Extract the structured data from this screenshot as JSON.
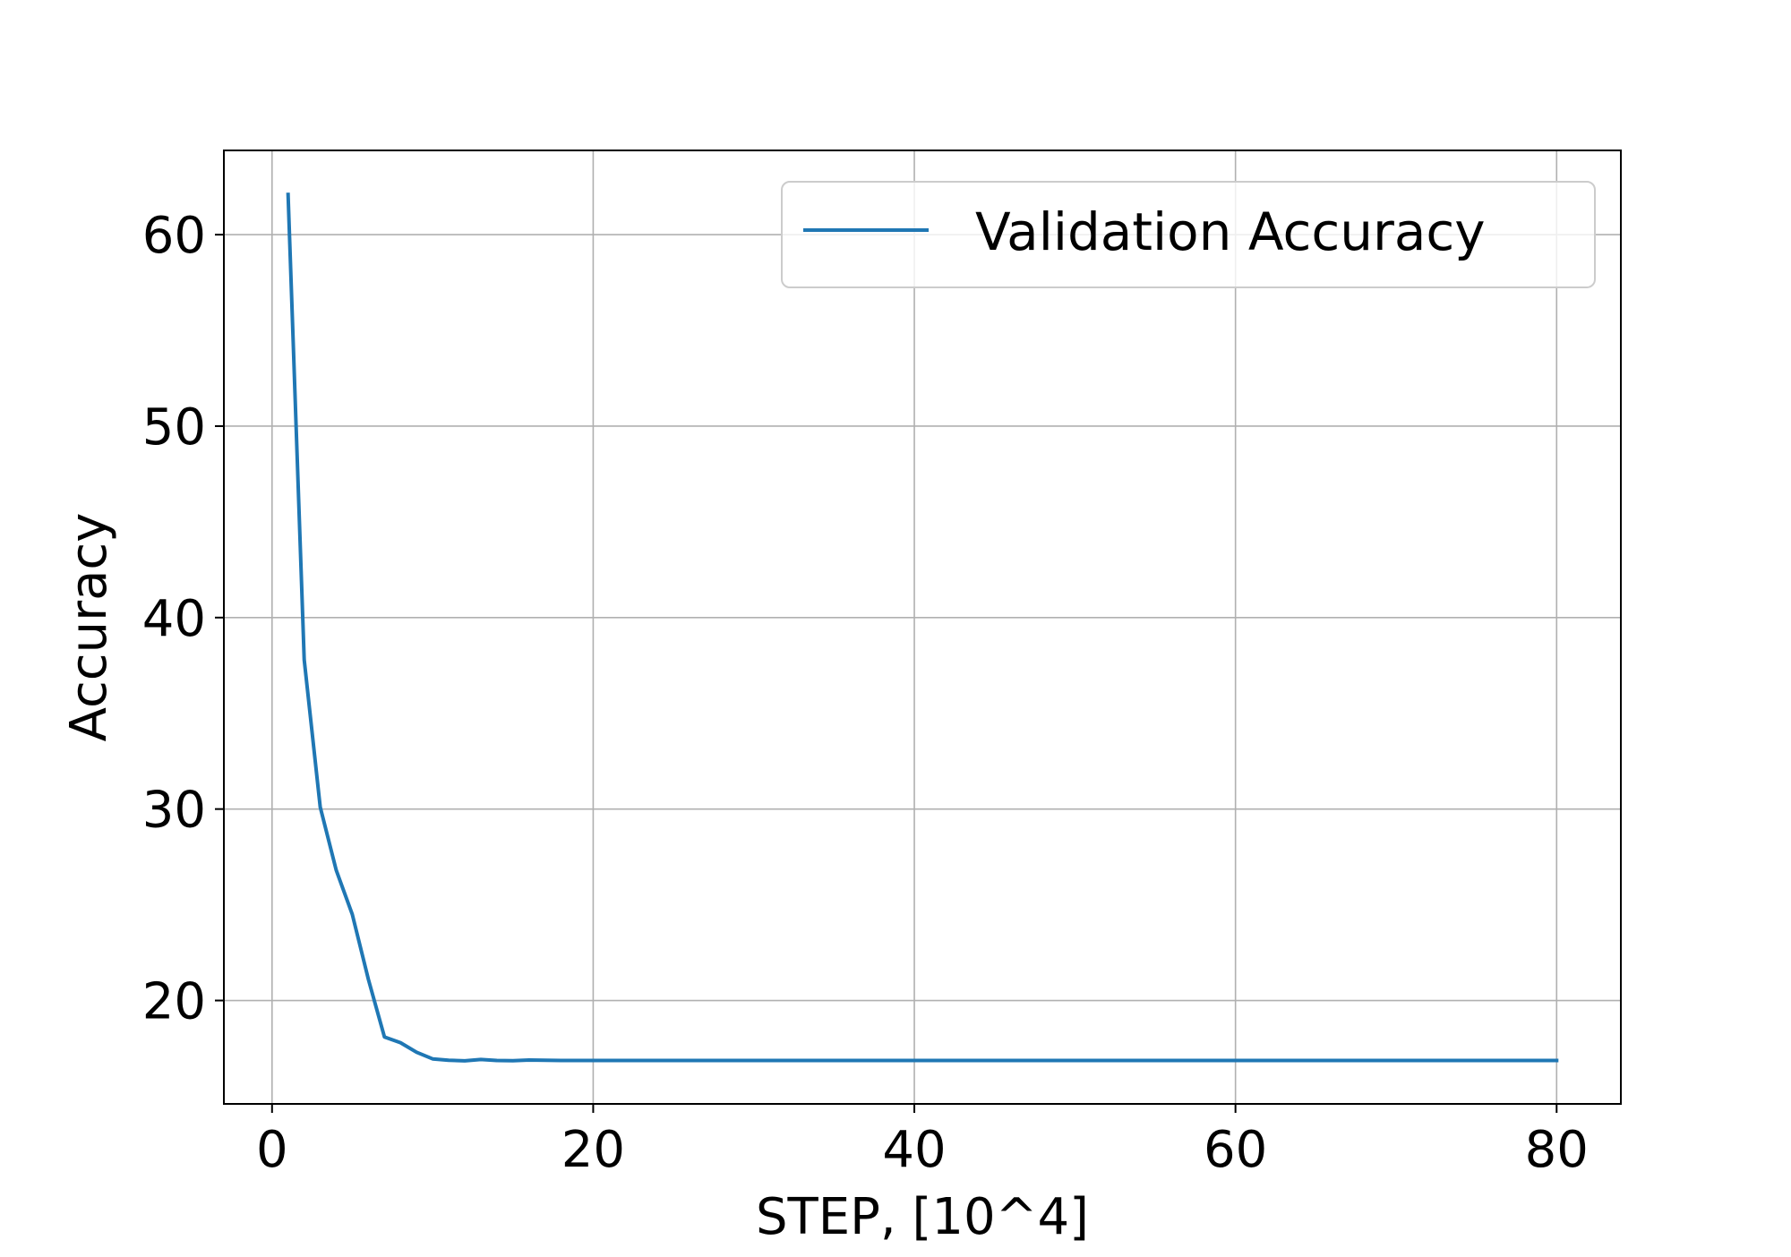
{
  "chart_data": {
    "type": "line",
    "title": "",
    "xlabel": "STEP, [10^4]",
    "ylabel": "Accuracy",
    "xlim": [
      -3,
      84
    ],
    "ylim": [
      14.6,
      64.4
    ],
    "xticks": [
      0,
      20,
      40,
      60,
      80
    ],
    "yticks": [
      20,
      30,
      40,
      50,
      60
    ],
    "grid": true,
    "legend_position": "top-right",
    "series": [
      {
        "name": "Validation Accuracy",
        "color": "#1f77b4",
        "x": [
          1,
          2,
          3,
          4,
          5,
          6,
          7,
          8,
          9,
          10,
          11,
          12,
          13,
          14,
          15,
          16,
          17,
          18,
          19,
          20,
          25,
          30,
          35,
          40,
          45,
          50,
          55,
          60,
          65,
          70,
          75,
          80
        ],
        "y": [
          62.1,
          37.8,
          30.1,
          26.8,
          24.5,
          21.1,
          18.1,
          17.8,
          17.3,
          16.95,
          16.88,
          16.85,
          16.92,
          16.87,
          16.86,
          16.89,
          16.88,
          16.87,
          16.87,
          16.87,
          16.87,
          16.87,
          16.87,
          16.87,
          16.87,
          16.87,
          16.87,
          16.87,
          16.87,
          16.87,
          16.87,
          16.87
        ]
      }
    ]
  }
}
